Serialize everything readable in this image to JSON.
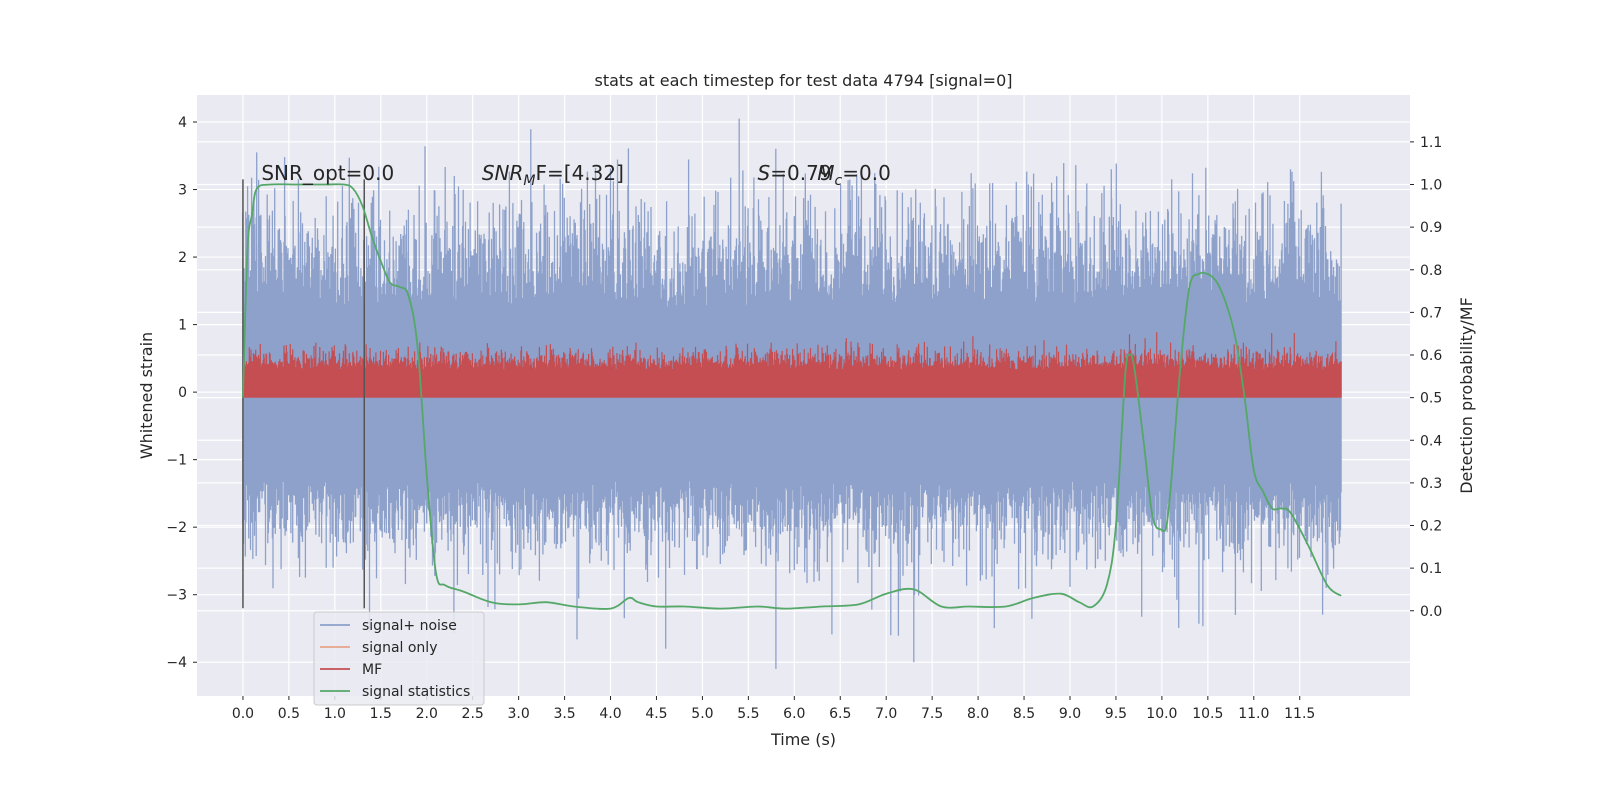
{
  "chart_data": {
    "type": "line",
    "title": "stats at each timestep for test data 4794 [signal=0]",
    "xlabel": "Time (s)",
    "ylabel_left": "Whitened strain",
    "ylabel_right": "Detection probability/MF",
    "xlim": [
      -0.5,
      12.7
    ],
    "ylim_left": [
      -4.5,
      4.4
    ],
    "ylim_right": [
      -0.2,
      1.21
    ],
    "xticks": [
      0,
      0.5,
      1,
      1.5,
      2,
      2.5,
      3,
      3.5,
      4,
      4.5,
      5,
      5.5,
      6,
      6.5,
      7,
      7.5,
      8,
      8.5,
      9,
      9.5,
      10,
      10.5,
      11,
      11.5
    ],
    "xtick_labels": [
      "0.0",
      "0.5",
      "1.0",
      "1.5",
      "2.0",
      "2.5",
      "3.0",
      "3.5",
      "4.0",
      "4.5",
      "5.0",
      "5.5",
      "6.0",
      "6.5",
      "7.0",
      "7.5",
      "8.0",
      "8.5",
      "9.0",
      "9.5",
      "10.0",
      "10.5",
      "11.0",
      "11.5"
    ],
    "yticks_left": [
      -4,
      -3,
      -2,
      -1,
      0,
      1,
      2,
      3,
      4
    ],
    "ytick_labels_left": [
      "−4",
      "−3",
      "−2",
      "−1",
      "0",
      "1",
      "2",
      "3",
      "4"
    ],
    "yticks_right": [
      0.0,
      0.1,
      0.2,
      0.3,
      0.4,
      0.5,
      0.6,
      0.7,
      0.8,
      0.9,
      1.0,
      1.1
    ],
    "ytick_labels_right": [
      "0.0",
      "0.1",
      "0.2",
      "0.3",
      "0.4",
      "0.5",
      "0.6",
      "0.7",
      "0.8",
      "0.9",
      "1.0",
      "1.1"
    ],
    "grid": true,
    "legend_placement": "lower-left",
    "series": [
      {
        "name": "signal+ noise",
        "axis": "left",
        "color": "#8da1cb",
        "kind": "noise",
        "x_range": [
          0.0,
          11.95
        ],
        "band_low": -1.3,
        "band_high": 1.25,
        "typical_peak": 2.3,
        "max_peak": 4.05,
        "min_trough": -4.1
      },
      {
        "name": "signal only",
        "axis": "left",
        "color": "#e8a488",
        "values": []
      },
      {
        "name": "MF",
        "axis": "right",
        "color": "#c44e52",
        "kind": "noise",
        "x_range": [
          0.0,
          11.95
        ],
        "band_low": 0.5,
        "band_high": 0.565,
        "typical_peak": 0.6,
        "max_peak": 0.63
      },
      {
        "name": "signal statistics",
        "axis": "right",
        "color": "#55a868",
        "x": [
          0.0,
          0.05,
          0.1,
          0.15,
          0.3,
          0.6,
          0.9,
          1.1,
          1.2,
          1.3,
          1.4,
          1.5,
          1.6,
          1.7,
          1.8,
          1.9,
          2.0,
          2.1,
          2.2,
          2.4,
          2.7,
          3.0,
          3.3,
          3.6,
          4.0,
          4.2,
          4.3,
          4.5,
          4.8,
          5.2,
          5.6,
          5.9,
          6.3,
          6.7,
          7.0,
          7.3,
          7.6,
          7.9,
          8.3,
          8.6,
          8.9,
          9.1,
          9.25,
          9.4,
          9.5,
          9.6,
          9.65,
          9.7,
          9.8,
          9.9,
          10.0,
          10.05,
          10.1,
          10.2,
          10.3,
          10.4,
          10.5,
          10.6,
          10.7,
          10.8,
          10.9,
          11.0,
          11.1,
          11.2,
          11.3,
          11.4,
          11.6,
          11.8,
          11.95
        ],
        "values": [
          0.5,
          0.85,
          0.93,
          0.99,
          1.0,
          1.0,
          1.0,
          1.0,
          0.99,
          0.95,
          0.88,
          0.82,
          0.77,
          0.76,
          0.74,
          0.62,
          0.32,
          0.09,
          0.06,
          0.045,
          0.02,
          0.015,
          0.02,
          0.01,
          0.005,
          0.03,
          0.02,
          0.01,
          0.01,
          0.005,
          0.01,
          0.005,
          0.01,
          0.015,
          0.04,
          0.05,
          0.01,
          0.01,
          0.01,
          0.03,
          0.04,
          0.02,
          0.01,
          0.06,
          0.2,
          0.55,
          0.6,
          0.57,
          0.4,
          0.22,
          0.19,
          0.2,
          0.3,
          0.57,
          0.76,
          0.79,
          0.79,
          0.77,
          0.72,
          0.64,
          0.5,
          0.33,
          0.28,
          0.24,
          0.24,
          0.23,
          0.15,
          0.06,
          0.035
        ]
      }
    ],
    "vertical_lines": [
      0.0,
      1.32
    ],
    "annotations": [
      {
        "text": "SNR_opt=0.0",
        "x": 0.2,
        "y_right": 1.01
      },
      {
        "text": "SNR",
        "sub": "M",
        "suffix": "F=[4.32]",
        "x": 2.6,
        "y_right": 1.01
      },
      {
        "text": "S",
        "suffix": "=0.79",
        "x": 5.6,
        "y_right": 1.01
      },
      {
        "text": "M",
        "sub": "c",
        "suffix": "=0.0",
        "x": 6.25,
        "y_right": 1.01
      }
    ]
  }
}
